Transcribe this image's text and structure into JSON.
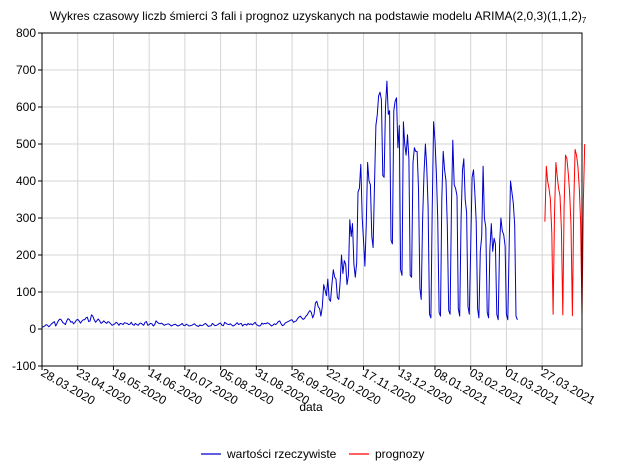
{
  "chart_data": {
    "type": "line",
    "title": "Wykres czasowy liczb śmierci 3 fali i prognoz uzyskanych na podstawie modelu ARIMA(2,0,3)(1,1,2)",
    "title_suffix": "7",
    "xlabel": "data",
    "ylabel": "",
    "ylim": [
      -100,
      800
    ],
    "yticks": [
      -100,
      0,
      100,
      200,
      300,
      400,
      500,
      600,
      700,
      800
    ],
    "xlim": [
      "2020-03-28",
      "2021-04-25"
    ],
    "xticks": [
      "28.03.2020",
      "23.04.2020",
      "19.05.2020",
      "14.06.2020",
      "10.07.2020",
      "05.08.2020",
      "31.08.2020",
      "26.09.2020",
      "22.10.2020",
      "17.11.2020",
      "13.12.2020",
      "08.01.2021",
      "03.02.2021",
      "01.03.2021",
      "27.03.2021"
    ],
    "grid": true,
    "legend_position": "bottom",
    "series": [
      {
        "name": "wartości rzeczywiste",
        "color": "#0000cc",
        "start": "2020-03-28",
        "values": [
          5,
          6,
          8,
          12,
          10,
          6,
          10,
          14,
          17,
          20,
          8,
          15,
          23,
          27,
          25,
          18,
          15,
          12,
          22,
          28,
          25,
          18,
          20,
          14,
          18,
          24,
          26,
          22,
          16,
          21,
          25,
          25,
          30,
          32,
          20,
          22,
          38,
          35,
          25,
          18,
          23,
          27,
          22,
          15,
          18,
          22,
          18,
          15,
          20,
          18,
          14,
          10,
          12,
          14,
          18,
          15,
          10,
          15,
          14,
          12,
          17,
          16,
          15,
          12,
          13,
          18,
          12,
          10,
          15,
          12,
          10,
          15,
          16,
          13,
          10,
          18,
          20,
          10,
          12,
          15,
          14,
          8,
          12,
          22,
          18,
          15,
          14,
          16,
          13,
          10,
          12,
          13,
          14,
          12,
          8,
          10,
          12,
          13,
          10,
          8,
          10,
          12,
          15,
          10,
          9,
          13,
          11,
          8,
          9,
          10,
          12,
          14,
          10,
          8,
          7,
          11,
          9,
          10,
          13,
          15,
          11,
          7,
          8,
          9,
          15,
          12,
          9,
          10,
          12,
          15,
          16,
          10,
          9,
          18,
          15,
          13,
          12,
          14,
          11,
          8,
          10,
          13,
          17,
          12,
          14,
          15,
          8,
          12,
          13,
          10,
          15,
          12,
          14,
          11,
          14,
          18,
          12,
          10,
          8,
          9,
          16,
          13,
          15,
          14,
          17,
          15,
          12,
          8,
          10,
          14,
          12,
          15,
          20,
          22,
          14,
          9,
          11,
          16,
          18,
          20,
          22,
          24,
          25,
          18,
          20,
          22,
          28,
          32,
          35,
          30,
          26,
          28,
          34,
          38,
          45,
          50,
          45,
          30,
          40,
          70,
          75,
          60,
          55,
          35,
          60,
          120,
          105,
          90,
          135,
          80,
          75,
          120,
          160,
          140,
          135,
          85,
          80,
          130,
          200,
          150,
          185,
          175,
          120,
          145,
          295,
          250,
          285,
          175,
          140,
          180,
          370,
          380,
          445,
          300,
          240,
          170,
          285,
          450,
          400,
          390,
          250,
          220,
          390,
          550,
          580,
          630,
          640,
          620,
          415,
          410,
          600,
          670,
          580,
          590,
          240,
          230,
          590,
          615,
          625,
          490,
          550,
          160,
          145,
          560,
          500,
          470,
          525,
          460,
          145,
          140,
          450,
          490,
          480,
          480,
          380,
          110,
          80,
          295,
          420,
          500,
          440,
          330,
          40,
          30,
          320,
          560,
          510,
          420,
          300,
          45,
          35,
          350,
          480,
          430,
          400,
          280,
          50,
          40,
          340,
          510,
          390,
          380,
          360,
          55,
          35,
          300,
          430,
          460,
          350,
          315,
          60,
          40,
          220,
          410,
          430,
          370,
          290,
          55,
          30,
          210,
          250,
          440,
          300,
          275,
          45,
          30,
          215,
          285,
          210,
          245,
          230,
          40,
          25,
          230,
          300,
          265,
          255,
          225,
          40,
          25,
          230,
          400,
          370,
          340,
          280,
          35,
          25
        ]
      },
      {
        "name": "prognozy",
        "color": "#ff0000",
        "start": "2021-03-29",
        "values": [
          290,
          440,
          400,
          380,
          350,
          260,
          40,
          310,
          450,
          410,
          380,
          360,
          270,
          38,
          330,
          470,
          460,
          420,
          370,
          280,
          36,
          340,
          485,
          470,
          440,
          380,
          290,
          36,
          350,
          500
        ]
      }
    ]
  }
}
